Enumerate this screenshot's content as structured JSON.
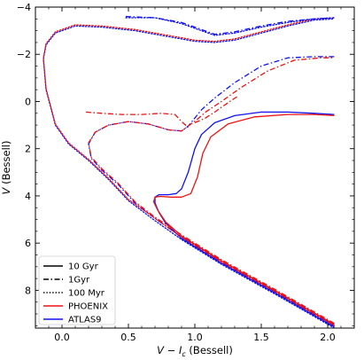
{
  "chart_data": {
    "type": "line",
    "title": "",
    "xlabel": "V − I",
    "xlabel_sub": "c",
    "xlabel_suffix": " (Bessell)",
    "ylabel": "V",
    "ylabel_suffix": " (Bessell)",
    "xlim": [
      -0.2,
      2.2
    ],
    "ylim": [
      9.6,
      -4.0
    ],
    "y_inverted": true,
    "grid": false,
    "xticks": [
      0.0,
      0.5,
      1.0,
      1.5,
      2.0
    ],
    "xtick_labels": [
      "0.0",
      "0.5",
      "1.0",
      "1.5",
      "2.0"
    ],
    "yticks": [
      -4,
      -2,
      0,
      2,
      4,
      6,
      8
    ],
    "ytick_labels": [
      "−4",
      "−2",
      "0",
      "2",
      "4",
      "6",
      "8"
    ],
    "legend": {
      "placement": "lower-left",
      "entries": [
        {
          "label": "10 Gyr",
          "style": "solid",
          "color": "#000000"
        },
        {
          "label": "1Gyr",
          "style": "dashdot",
          "color": "#000000"
        },
        {
          "label": "100 Myr",
          "style": "dotted",
          "color": "#000000"
        },
        {
          "label": "PHOENIX",
          "style": "solid",
          "color": "#ee1111"
        },
        {
          "label": "ATLAS9",
          "style": "solid",
          "color": "#1111ee"
        }
      ]
    },
    "colors": {
      "PHOENIX": "#ee1111",
      "ATLAS9": "#1111ee"
    },
    "series": [
      {
        "age": "10 Gyr",
        "model": "ATLAS9",
        "style": "solid",
        "color": "#1111ee",
        "points": [
          [
            2.05,
            9.55
          ],
          [
            1.6,
            8.1
          ],
          [
            1.2,
            6.85
          ],
          [
            0.9,
            5.8
          ],
          [
            0.78,
            5.15
          ],
          [
            0.73,
            4.7
          ],
          [
            0.7,
            4.3
          ],
          [
            0.7,
            4.05
          ],
          [
            0.73,
            3.95
          ],
          [
            0.8,
            3.95
          ],
          [
            0.86,
            3.9
          ],
          [
            0.9,
            3.7
          ],
          [
            0.95,
            3.0
          ],
          [
            1.0,
            2.0
          ],
          [
            1.05,
            1.4
          ],
          [
            1.15,
            0.9
          ],
          [
            1.3,
            0.6
          ],
          [
            1.5,
            0.45
          ],
          [
            1.7,
            0.45
          ],
          [
            1.9,
            0.5
          ],
          [
            2.05,
            0.55
          ]
        ]
      },
      {
        "age": "10 Gyr",
        "model": "PHOENIX",
        "style": "solid",
        "color": "#ee1111",
        "points": [
          [
            2.05,
            9.45
          ],
          [
            1.6,
            8.0
          ],
          [
            1.2,
            6.75
          ],
          [
            0.9,
            5.7
          ],
          [
            0.78,
            5.1
          ],
          [
            0.72,
            4.6
          ],
          [
            0.69,
            4.25
          ],
          [
            0.7,
            4.05
          ],
          [
            0.74,
            4.02
          ],
          [
            0.82,
            4.05
          ],
          [
            0.9,
            4.05
          ],
          [
            0.97,
            3.9
          ],
          [
            1.02,
            3.2
          ],
          [
            1.06,
            2.2
          ],
          [
            1.12,
            1.5
          ],
          [
            1.25,
            0.95
          ],
          [
            1.45,
            0.65
          ],
          [
            1.7,
            0.55
          ],
          [
            1.9,
            0.55
          ],
          [
            2.05,
            0.6
          ]
        ]
      },
      {
        "age": "1Gyr",
        "model": "ATLAS9",
        "style": "dashdot",
        "color": "#1111ee",
        "points": [
          [
            2.05,
            9.5
          ],
          [
            1.6,
            8.05
          ],
          [
            1.2,
            6.8
          ],
          [
            0.9,
            5.75
          ],
          [
            0.7,
            4.95
          ],
          [
            0.55,
            4.3
          ],
          [
            0.42,
            3.5
          ],
          [
            0.3,
            2.9
          ],
          [
            0.22,
            2.4
          ],
          [
            0.2,
            1.8
          ],
          [
            0.25,
            1.3
          ],
          [
            0.35,
            1.0
          ],
          [
            0.5,
            0.85
          ],
          [
            0.65,
            0.95
          ],
          [
            0.8,
            1.2
          ],
          [
            0.9,
            1.25
          ],
          [
            0.95,
            1.05
          ],
          [
            1.0,
            0.7
          ],
          [
            1.05,
            0.35
          ],
          [
            1.15,
            -0.15
          ],
          [
            1.3,
            -0.8
          ],
          [
            1.5,
            -1.5
          ],
          [
            1.7,
            -1.85
          ],
          [
            1.9,
            -1.9
          ],
          [
            2.05,
            -1.9
          ]
        ]
      },
      {
        "age": "1Gyr",
        "model": "PHOENIX",
        "style": "dashdot",
        "color": "#ee1111",
        "points": [
          [
            2.05,
            9.4
          ],
          [
            1.6,
            7.95
          ],
          [
            1.2,
            6.7
          ],
          [
            0.9,
            5.65
          ],
          [
            0.7,
            4.9
          ],
          [
            0.55,
            4.25
          ],
          [
            0.42,
            3.45
          ],
          [
            0.3,
            2.85
          ],
          [
            0.22,
            2.35
          ],
          [
            0.2,
            1.75
          ],
          [
            0.25,
            1.3
          ],
          [
            0.35,
            1.0
          ],
          [
            0.5,
            0.85
          ],
          [
            0.65,
            0.95
          ],
          [
            0.8,
            1.2
          ],
          [
            0.9,
            1.25
          ],
          [
            0.96,
            1.0
          ],
          [
            1.02,
            0.75
          ],
          [
            1.08,
            0.45
          ],
          [
            1.2,
            0.0
          ],
          [
            1.35,
            -0.6
          ],
          [
            1.55,
            -1.3
          ],
          [
            1.75,
            -1.75
          ],
          [
            1.95,
            -1.85
          ],
          [
            2.05,
            -1.85
          ]
        ]
      },
      {
        "age": "100 Myr",
        "model": "ATLAS9",
        "style": "dotted",
        "color": "#1111ee",
        "points": [
          [
            2.05,
            9.6
          ],
          [
            1.6,
            8.15
          ],
          [
            1.2,
            6.9
          ],
          [
            0.9,
            5.85
          ],
          [
            0.7,
            5.05
          ],
          [
            0.5,
            4.2
          ],
          [
            0.35,
            3.3
          ],
          [
            0.2,
            2.5
          ],
          [
            0.05,
            1.8
          ],
          [
            -0.05,
            1.0
          ],
          [
            -0.12,
            -0.5
          ],
          [
            -0.14,
            -1.8
          ],
          [
            -0.12,
            -2.4
          ],
          [
            -0.05,
            -2.9
          ],
          [
            0.1,
            -3.2
          ],
          [
            0.3,
            -3.15
          ],
          [
            0.55,
            -3.0
          ],
          [
            0.8,
            -2.75
          ],
          [
            1.0,
            -2.55
          ],
          [
            1.15,
            -2.5
          ],
          [
            1.3,
            -2.6
          ],
          [
            1.5,
            -2.9
          ],
          [
            1.7,
            -3.2
          ],
          [
            1.9,
            -3.45
          ],
          [
            2.05,
            -3.5
          ]
        ]
      },
      {
        "age": "100 Myr",
        "model": "PHOENIX",
        "style": "dotted",
        "color": "#ee1111",
        "points": [
          [
            2.05,
            9.5
          ],
          [
            1.6,
            8.05
          ],
          [
            1.2,
            6.8
          ],
          [
            0.9,
            5.75
          ],
          [
            0.7,
            4.95
          ],
          [
            0.5,
            4.15
          ],
          [
            0.35,
            3.25
          ],
          [
            0.2,
            2.45
          ],
          [
            0.05,
            1.75
          ],
          [
            -0.05,
            0.95
          ],
          [
            -0.12,
            -0.55
          ],
          [
            -0.14,
            -1.85
          ],
          [
            -0.12,
            -2.45
          ],
          [
            -0.05,
            -2.95
          ],
          [
            0.1,
            -3.25
          ],
          [
            0.3,
            -3.2
          ],
          [
            0.55,
            -3.05
          ],
          [
            0.8,
            -2.8
          ],
          [
            1.0,
            -2.6
          ],
          [
            1.15,
            -2.55
          ],
          [
            1.3,
            -2.65
          ],
          [
            1.5,
            -2.95
          ],
          [
            1.7,
            -3.25
          ],
          [
            1.9,
            -3.5
          ],
          [
            2.05,
            -3.55
          ]
        ]
      },
      {
        "age": "100 Myr",
        "model": "ATLAS9",
        "style": "dotted",
        "color": "#1111ee",
        "points": [
          [
            0.48,
            -3.55
          ],
          [
            0.7,
            -3.55
          ],
          [
            0.9,
            -3.3
          ],
          [
            1.05,
            -3.0
          ],
          [
            1.15,
            -2.8
          ],
          [
            1.3,
            -2.9
          ],
          [
            1.5,
            -3.15
          ],
          [
            1.7,
            -3.35
          ],
          [
            1.9,
            -3.5
          ],
          [
            2.05,
            -3.55
          ]
        ]
      },
      {
        "age": "1Gyr",
        "model": "ATLAS9",
        "style": "dashdot",
        "color": "#1111ee",
        "points": [
          [
            0.48,
            -3.6
          ],
          [
            0.7,
            -3.55
          ],
          [
            0.9,
            -3.35
          ],
          [
            1.05,
            -3.05
          ],
          [
            1.15,
            -2.85
          ],
          [
            1.3,
            -2.95
          ],
          [
            1.5,
            -3.2
          ],
          [
            1.7,
            -3.4
          ],
          [
            1.9,
            -3.5
          ],
          [
            2.05,
            -3.55
          ]
        ]
      },
      {
        "age": "1Gyr",
        "model": "PHOENIX",
        "style": "dashdot",
        "color": "#ee1111",
        "points": [
          [
            0.18,
            0.45
          ],
          [
            0.3,
            0.5
          ],
          [
            0.45,
            0.55
          ],
          [
            0.6,
            0.55
          ],
          [
            0.75,
            0.5
          ],
          [
            0.85,
            0.55
          ],
          [
            0.9,
            0.85
          ],
          [
            0.95,
            1.1
          ]
        ]
      },
      {
        "age": "1Gyr",
        "model": "PHOENIX",
        "style": "dashdot",
        "color": "#ee1111",
        "points": [
          [
            1.0,
            0.9
          ],
          [
            1.08,
            0.7
          ],
          [
            1.15,
            0.45
          ],
          [
            1.25,
            0.05
          ],
          [
            1.33,
            -0.25
          ]
        ]
      }
    ]
  }
}
